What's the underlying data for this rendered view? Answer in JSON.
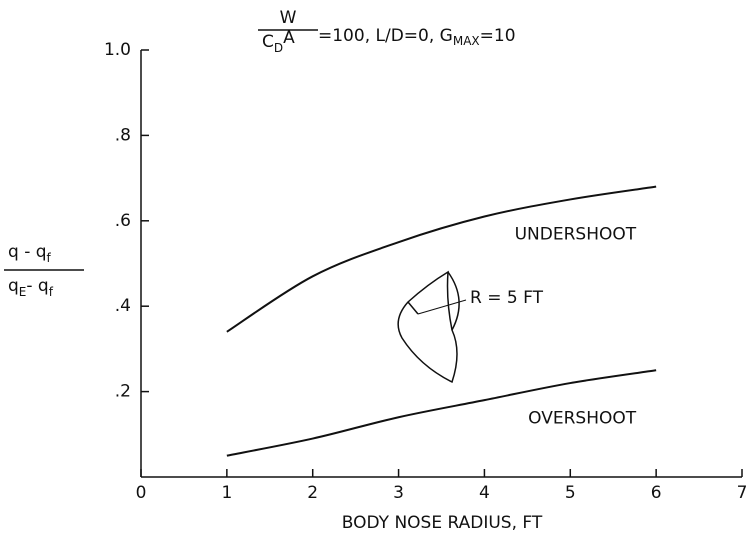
{
  "chart_data": {
    "type": "line",
    "title": {
      "numerator": "W",
      "denominator": "C",
      "denominator_sub": "D",
      "denominator_tail": "A",
      "text": "=100,  L/D=0,  G",
      "text_sub": "MAX",
      "text_tail": "=10"
    },
    "x_label": "BODY  NOSE  RADIUS,  FT",
    "y_label": {
      "numerator": "q - q",
      "numerator_sub": "f",
      "denominator": "q",
      "denominator_sub": "E",
      "denominator_mid": "- q",
      "denominator_sub2": "f"
    },
    "x": [
      1,
      2,
      3,
      4,
      5,
      6
    ],
    "series": [
      {
        "name": "UNDERSHOOT",
        "color": "#111111",
        "values": [
          0.34,
          0.47,
          0.55,
          0.61,
          0.65,
          0.68
        ]
      },
      {
        "name": "OVERSHOOT",
        "color": "#111111",
        "values": [
          0.05,
          0.09,
          0.14,
          0.18,
          0.22,
          0.25
        ]
      }
    ],
    "annotations": [
      "R = 5 FT"
    ],
    "xlim": [
      0,
      7
    ],
    "xticks": [
      0,
      1,
      2,
      3,
      4,
      5,
      6,
      7
    ],
    "ylim": [
      0,
      1
    ],
    "yticks": [
      {
        "value": 0.2,
        "label": ".2"
      },
      {
        "value": 0.4,
        "label": ".4"
      },
      {
        "value": 0.6,
        "label": ".6"
      },
      {
        "value": 0.8,
        "label": ".8"
      },
      {
        "value": 1,
        "label": "1.0"
      }
    ]
  }
}
